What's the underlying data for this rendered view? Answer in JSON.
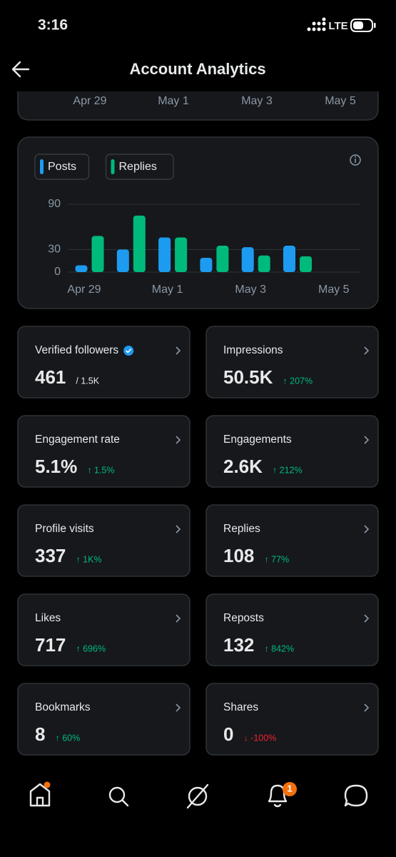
{
  "status_bar": {
    "time": "3:16",
    "network": "LTE"
  },
  "header": {
    "title": "Account Analytics"
  },
  "top_card": {
    "x_labels": [
      "Apr 29",
      "May 1",
      "May 3",
      "May 5"
    ]
  },
  "chart_data": {
    "type": "bar",
    "categories": [
      "Apr 29",
      null,
      "May 1",
      null,
      "May 3",
      null,
      "May 5"
    ],
    "series": [
      {
        "name": "Posts",
        "color": "#1d9bf0",
        "values": [
          9,
          30,
          46,
          19,
          33,
          35,
          null
        ]
      },
      {
        "name": "Replies",
        "color": "#00ba7c",
        "values": [
          48,
          75,
          46,
          35,
          22,
          21,
          null
        ]
      }
    ],
    "ylim": [
      0,
      90
    ],
    "yticks": [
      0,
      30,
      90
    ],
    "grid": true
  },
  "metrics": [
    {
      "label": "Verified followers",
      "value": "461",
      "suffix": "/ 1.5K",
      "verified": true
    },
    {
      "label": "Impressions",
      "value": "50.5K",
      "change": "↑ 207%",
      "trend": "up"
    },
    {
      "label": "Engagement rate",
      "value": "5.1%",
      "change": "↑ 1.5%",
      "trend": "up"
    },
    {
      "label": "Engagements",
      "value": "2.6K",
      "change": "↑ 212%",
      "trend": "up"
    },
    {
      "label": "Profile visits",
      "value": "337",
      "change": "↑ 1K%",
      "trend": "up"
    },
    {
      "label": "Replies",
      "value": "108",
      "change": "↑ 77%",
      "trend": "up"
    },
    {
      "label": "Likes",
      "value": "717",
      "change": "↑ 696%",
      "trend": "up"
    },
    {
      "label": "Reposts",
      "value": "132",
      "change": "↑ 842%",
      "trend": "up"
    },
    {
      "label": "Bookmarks",
      "value": "8",
      "change": "↑ 60%",
      "trend": "up"
    },
    {
      "label": "Shares",
      "value": "0",
      "change": "↓ -100%",
      "trend": "down"
    }
  ],
  "nav": {
    "notification_badge": "1"
  }
}
